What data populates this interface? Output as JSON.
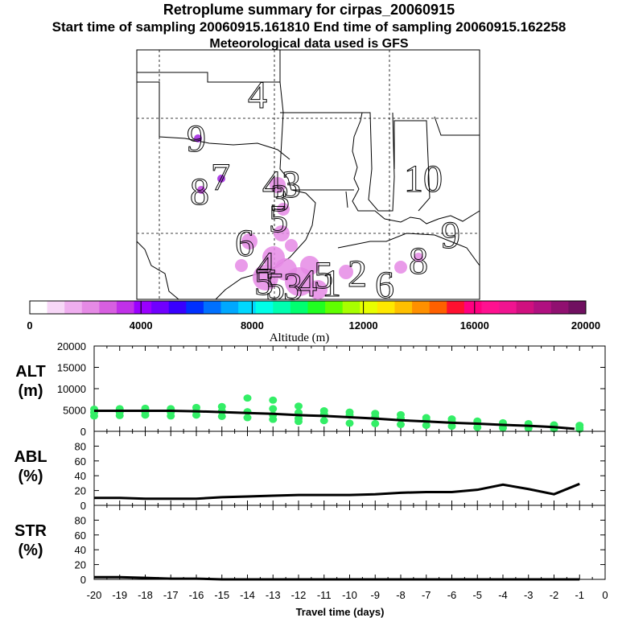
{
  "header": {
    "title": "Retroplume summary for cirpas_20060915",
    "sampling": "Start time of sampling 20060915.161810     End time of sampling 20060915.162258",
    "met": "Meteorological data used is GFS"
  },
  "colors": {
    "plume": "#e58ae5",
    "dots": "#33ee66",
    "line": "#000000"
  },
  "chart_data": [
    {
      "id": "map",
      "type": "other",
      "description_labels": [
        "4",
        "9",
        "8",
        "7",
        "4",
        "3",
        "5",
        "3",
        "10",
        "6",
        "9",
        "4",
        "5",
        "3",
        "4",
        "1",
        "2",
        "6",
        "8",
        "5",
        "5"
      ],
      "colorbar": {
        "ticks": [
          "0",
          "4000",
          "8000",
          "12000",
          "16000",
          "20000"
        ],
        "label": "Altitude (m)",
        "colors": [
          "#ffffff",
          "#f7d7f7",
          "#efaeef",
          "#e58ae5",
          "#d75fe0",
          "#c030e8",
          "#9a00ff",
          "#7000ff",
          "#3800ff",
          "#0030ff",
          "#0070ff",
          "#00a8ff",
          "#00d8ff",
          "#00ffe8",
          "#00ffb0",
          "#00ff70",
          "#20ff20",
          "#60ff00",
          "#a8ff00",
          "#e8ff00",
          "#ffe800",
          "#ffc000",
          "#ff9000",
          "#ff6000",
          "#ff1030",
          "#ff0080",
          "#ff1090",
          "#f01490",
          "#d0107f",
          "#b01080",
          "#901070",
          "#701060"
        ]
      }
    },
    {
      "id": "alt",
      "type": "scatter",
      "ylabel": "ALT\n(m)",
      "ylabel_lines": [
        "ALT",
        "(m)"
      ],
      "xlim": [
        -20,
        0
      ],
      "ylim": [
        0,
        20000
      ],
      "yticks": [
        "20000",
        "15000",
        "10000",
        "5000",
        "0"
      ],
      "line": {
        "x": [
          -20,
          -19,
          -18,
          -17,
          -16,
          -15,
          -14,
          -13,
          -12,
          -11,
          -10,
          -9,
          -8,
          -7,
          -6,
          -5,
          -4,
          -3,
          -2,
          -1.2
        ],
        "y": [
          4800,
          4800,
          4800,
          4800,
          4700,
          4500,
          4300,
          4100,
          3800,
          3600,
          3300,
          3000,
          2600,
          2300,
          2000,
          1800,
          1500,
          1300,
          1000,
          600
        ]
      },
      "points": [
        {
          "x": -20,
          "y": [
            5200,
            4400,
            3600
          ]
        },
        {
          "x": -19,
          "y": [
            5300,
            4500,
            3700
          ]
        },
        {
          "x": -18,
          "y": [
            5400,
            4600,
            3800
          ]
        },
        {
          "x": -17,
          "y": [
            5300,
            4500,
            3600
          ]
        },
        {
          "x": -16,
          "y": [
            5600,
            4700,
            3800
          ]
        },
        {
          "x": -15,
          "y": [
            5800,
            4700,
            3500
          ]
        },
        {
          "x": -14,
          "y": [
            7800,
            4600,
            3200
          ]
        },
        {
          "x": -13,
          "y": [
            7300,
            5300,
            3800,
            2800
          ]
        },
        {
          "x": -12,
          "y": [
            5900,
            4400,
            3000,
            2300
          ]
        },
        {
          "x": -11,
          "y": [
            4800,
            4000,
            2500
          ]
        },
        {
          "x": -10,
          "y": [
            4500,
            3800,
            1900
          ]
        },
        {
          "x": -9,
          "y": [
            4200,
            3400,
            1800
          ]
        },
        {
          "x": -8,
          "y": [
            3900,
            3000,
            1600
          ]
        },
        {
          "x": -7,
          "y": [
            3200,
            2700,
            1400
          ]
        },
        {
          "x": -6,
          "y": [
            2900,
            2300,
            1200
          ]
        },
        {
          "x": -5,
          "y": [
            2400,
            1800,
            900
          ]
        },
        {
          "x": -4,
          "y": [
            2000,
            1500,
            800
          ]
        },
        {
          "x": -3,
          "y": [
            1800,
            1200,
            700
          ]
        },
        {
          "x": -2,
          "y": [
            1500,
            1000,
            600
          ]
        },
        {
          "x": -1,
          "y": [
            1400,
            900,
            500
          ]
        }
      ]
    },
    {
      "id": "abl",
      "type": "line",
      "ylabel_lines": [
        "ABL",
        "(%)"
      ],
      "xlim": [
        -20,
        0
      ],
      "ylim": [
        0,
        100
      ],
      "yticks": [
        "80",
        "60",
        "40",
        "20",
        "0"
      ],
      "x": [
        -20,
        -19,
        -18,
        -17,
        -16,
        -15,
        -14,
        -13,
        -12,
        -11,
        -10,
        -9,
        -8,
        -7,
        -6,
        -5,
        -4,
        -3,
        -2,
        -1
      ],
      "y": [
        10,
        10,
        9,
        9,
        9,
        11,
        12,
        13,
        14,
        14,
        14,
        15,
        17,
        18,
        18,
        21,
        28,
        22,
        15,
        29
      ]
    },
    {
      "id": "str",
      "type": "line",
      "ylabel_lines": [
        "STR",
        "(%)"
      ],
      "xlim": [
        -20,
        0
      ],
      "ylim": [
        0,
        100
      ],
      "yticks": [
        "80",
        "60",
        "40",
        "20",
        "0"
      ],
      "x": [
        -20,
        -19,
        -18,
        -17,
        -16,
        -15,
        -14,
        -13,
        -12,
        -11,
        -10,
        -9,
        -8,
        -7,
        -6,
        -5,
        -4,
        -3,
        -2,
        -1
      ],
      "y": [
        3,
        3,
        2,
        1,
        1,
        0,
        0,
        0,
        0,
        0,
        0,
        0,
        0,
        0,
        0,
        0,
        0,
        0,
        0,
        0
      ],
      "xticks": [
        "-20",
        "-19",
        "-18",
        "-17",
        "-16",
        "-15",
        "-14",
        "-13",
        "-12",
        "-11",
        "-10",
        "-9",
        "-8",
        "-7",
        "-6",
        "-5",
        "-4",
        "-3",
        "-2",
        "-1",
        "0"
      ],
      "xlabel": "Travel time (days)"
    }
  ]
}
